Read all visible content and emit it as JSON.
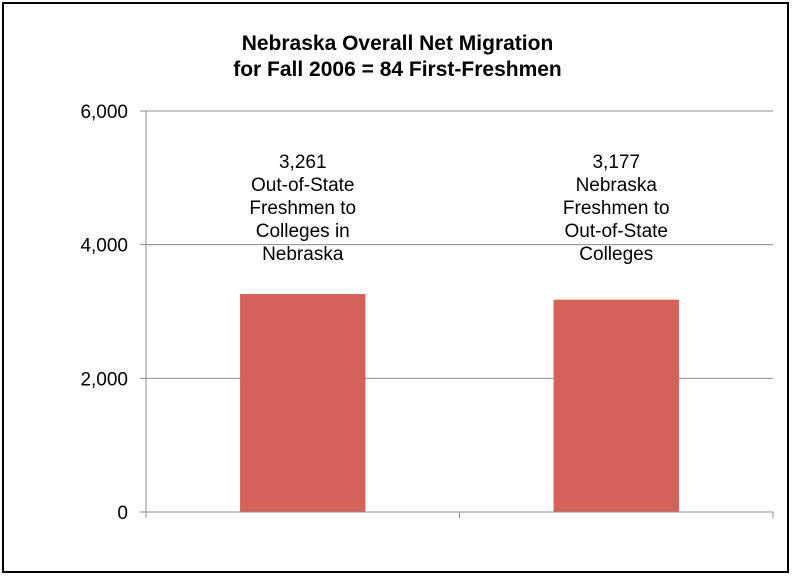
{
  "chart_data": {
    "type": "bar",
    "title": [
      "Nebraska Overall Net Migration",
      "for Fall 2006 = 84 First-Freshmen"
    ],
    "xlabel": "",
    "ylabel": "",
    "ylim": [
      0,
      6000
    ],
    "y_ticks": [
      0,
      2000,
      4000,
      6000
    ],
    "y_tick_labels": [
      "0",
      "2,000",
      "4,000",
      "6,000"
    ],
    "grid": true,
    "legend": "none",
    "bar_color": "#d4625a",
    "categories": [
      {
        "value": 3261,
        "label_lines": [
          "3,261",
          "Out-of-State",
          "Freshmen to",
          "Colleges in",
          "Nebraska"
        ]
      },
      {
        "value": 3177,
        "label_lines": [
          "3,177",
          "Nebraska",
          "Freshmen to",
          "Out-of-State",
          "Colleges"
        ]
      }
    ]
  }
}
